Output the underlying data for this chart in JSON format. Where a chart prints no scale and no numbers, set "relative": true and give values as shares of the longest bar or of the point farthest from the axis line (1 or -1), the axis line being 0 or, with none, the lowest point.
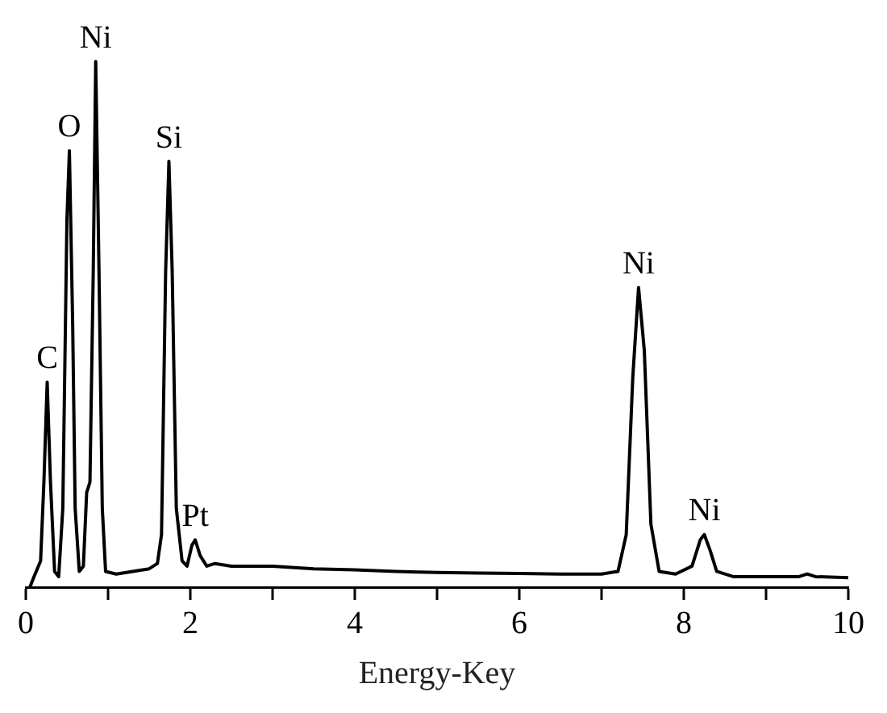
{
  "chart_data": {
    "type": "line",
    "xlabel": "Energy-Key",
    "relative": true,
    "xlim": [
      0,
      10
    ],
    "xticks": [
      0,
      {
        "value": 1,
        "label": null
      },
      2,
      {
        "value": 3,
        "label": null
      },
      4,
      {
        "value": 5,
        "label": null
      },
      6,
      {
        "value": 7,
        "label": null
      },
      8,
      {
        "value": 9,
        "label": null
      },
      10
    ],
    "grid": false,
    "legend": false,
    "marker": "none",
    "line_style": "solid",
    "series": [
      {
        "color": "#000000",
        "x": [
          0.05,
          0.1,
          0.18,
          0.22,
          0.26,
          0.3,
          0.35,
          0.4,
          0.45,
          0.5,
          0.53,
          0.57,
          0.6,
          0.65,
          0.7,
          0.74,
          0.78,
          0.82,
          0.85,
          0.89,
          0.93,
          0.97,
          1.1,
          1.3,
          1.5,
          1.6,
          1.65,
          1.7,
          1.74,
          1.78,
          1.83,
          1.9,
          1.96,
          2.02,
          2.06,
          2.12,
          2.2,
          2.3,
          2.5,
          3,
          3.5,
          4,
          4.5,
          5,
          5.5,
          6,
          6.5,
          7,
          7.2,
          7.3,
          7.38,
          7.45,
          7.52,
          7.6,
          7.7,
          7.9,
          8.1,
          8.2,
          8.25,
          8.32,
          8.4,
          8.6,
          9,
          9.4,
          9.5,
          9.6,
          10
        ],
        "values": [
          0.0,
          0.02,
          0.05,
          0.2,
          0.39,
          0.2,
          0.03,
          0.02,
          0.15,
          0.7,
          0.83,
          0.5,
          0.15,
          0.03,
          0.04,
          0.18,
          0.2,
          0.6,
          1.0,
          0.6,
          0.15,
          0.03,
          0.025,
          0.03,
          0.035,
          0.045,
          0.1,
          0.6,
          0.81,
          0.6,
          0.15,
          0.05,
          0.04,
          0.08,
          0.09,
          0.06,
          0.04,
          0.045,
          0.04,
          0.04,
          0.035,
          0.033,
          0.03,
          0.028,
          0.027,
          0.026,
          0.025,
          0.025,
          0.03,
          0.1,
          0.4,
          0.57,
          0.45,
          0.12,
          0.03,
          0.025,
          0.04,
          0.09,
          0.1,
          0.07,
          0.03,
          0.02,
          0.02,
          0.02,
          0.025,
          0.02,
          0.018
        ]
      }
    ],
    "annotations": [
      {
        "text": "C",
        "x": 0.26,
        "y": 0.39
      },
      {
        "text": "O",
        "x": 0.53,
        "y": 0.83
      },
      {
        "text": "Ni",
        "x": 0.85,
        "y": 1.0
      },
      {
        "text": "Si",
        "x": 1.74,
        "y": 0.81
      },
      {
        "text": "Pt",
        "x": 2.06,
        "y": 0.09
      },
      {
        "text": "Ni",
        "x": 7.45,
        "y": 0.57
      },
      {
        "text": "Ni",
        "x": 8.25,
        "y": 0.1
      }
    ]
  }
}
